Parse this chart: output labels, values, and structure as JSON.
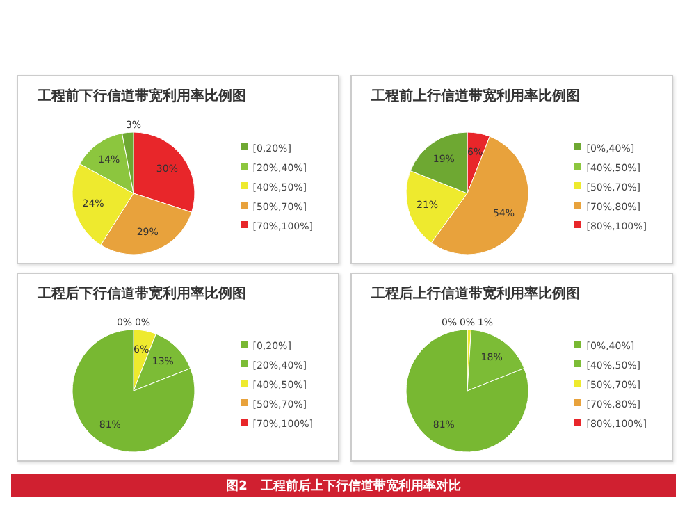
{
  "chart_data": [
    {
      "type": "pie",
      "title": "工程前下行信道带宽利用率比例图",
      "categories": [
        "[70%,100%]",
        "[50%,70%]",
        "[40%,50%]",
        "[20%,40%]",
        "[0,20%]"
      ],
      "values": [
        30,
        29,
        24,
        14,
        3
      ],
      "value_labels": [
        "30%",
        "29%",
        "24%",
        "14%",
        "3%"
      ],
      "colors": [
        "#e8262a",
        "#e8a23c",
        "#eeea2e",
        "#8cc63e",
        "#6ea832"
      ],
      "legend": "right",
      "annotations": [
        "图2   工程前后上下行信道带宽利用率对比"
      ]
    },
    {
      "type": "pie",
      "title": "工程前上行信道带宽利用率比例图",
      "categories": [
        "[80%,100%]",
        "[70%,80%]",
        "[50%,70%]",
        "[40%,50%]",
        "[0%,40%]"
      ],
      "values": [
        6,
        54,
        21,
        0,
        19
      ],
      "value_labels": [
        "6%",
        "54%",
        "21%",
        null,
        "19%"
      ],
      "colors": [
        "#e8262a",
        "#e8a23c",
        "#eeea2e",
        "#8cc63e",
        "#6ea832"
      ],
      "legend": "right"
    },
    {
      "type": "pie",
      "title": "工程后下行信道带宽利用率比例图",
      "categories": [
        "[70%,100%]",
        "[50%,70%]",
        "[40%,50%]",
        "[20%,40%]",
        "[0,20%]"
      ],
      "values": [
        0,
        0,
        6,
        13,
        81
      ],
      "value_labels": [
        "0%",
        "0%",
        "6%",
        "13%",
        "81%"
      ],
      "colors": [
        "#e8262a",
        "#e8a23c",
        "#eeea2e",
        "#7cbc36",
        "#78b832"
      ],
      "legend": "right"
    },
    {
      "type": "pie",
      "title": "工程后上行信道带宽利用率比例图",
      "categories": [
        "[80%,100%]",
        "[70%,80%]",
        "[50%,70%]",
        "[40%,50%]",
        "[0%,40%]"
      ],
      "values": [
        0,
        0,
        1,
        18,
        81
      ],
      "value_labels": [
        "0%",
        "0%",
        "1%",
        "18%",
        "81%"
      ],
      "colors": [
        "#e8262a",
        "#e8a23c",
        "#eeea2e",
        "#7cbc36",
        "#78b832"
      ],
      "legend": "right"
    }
  ]
}
